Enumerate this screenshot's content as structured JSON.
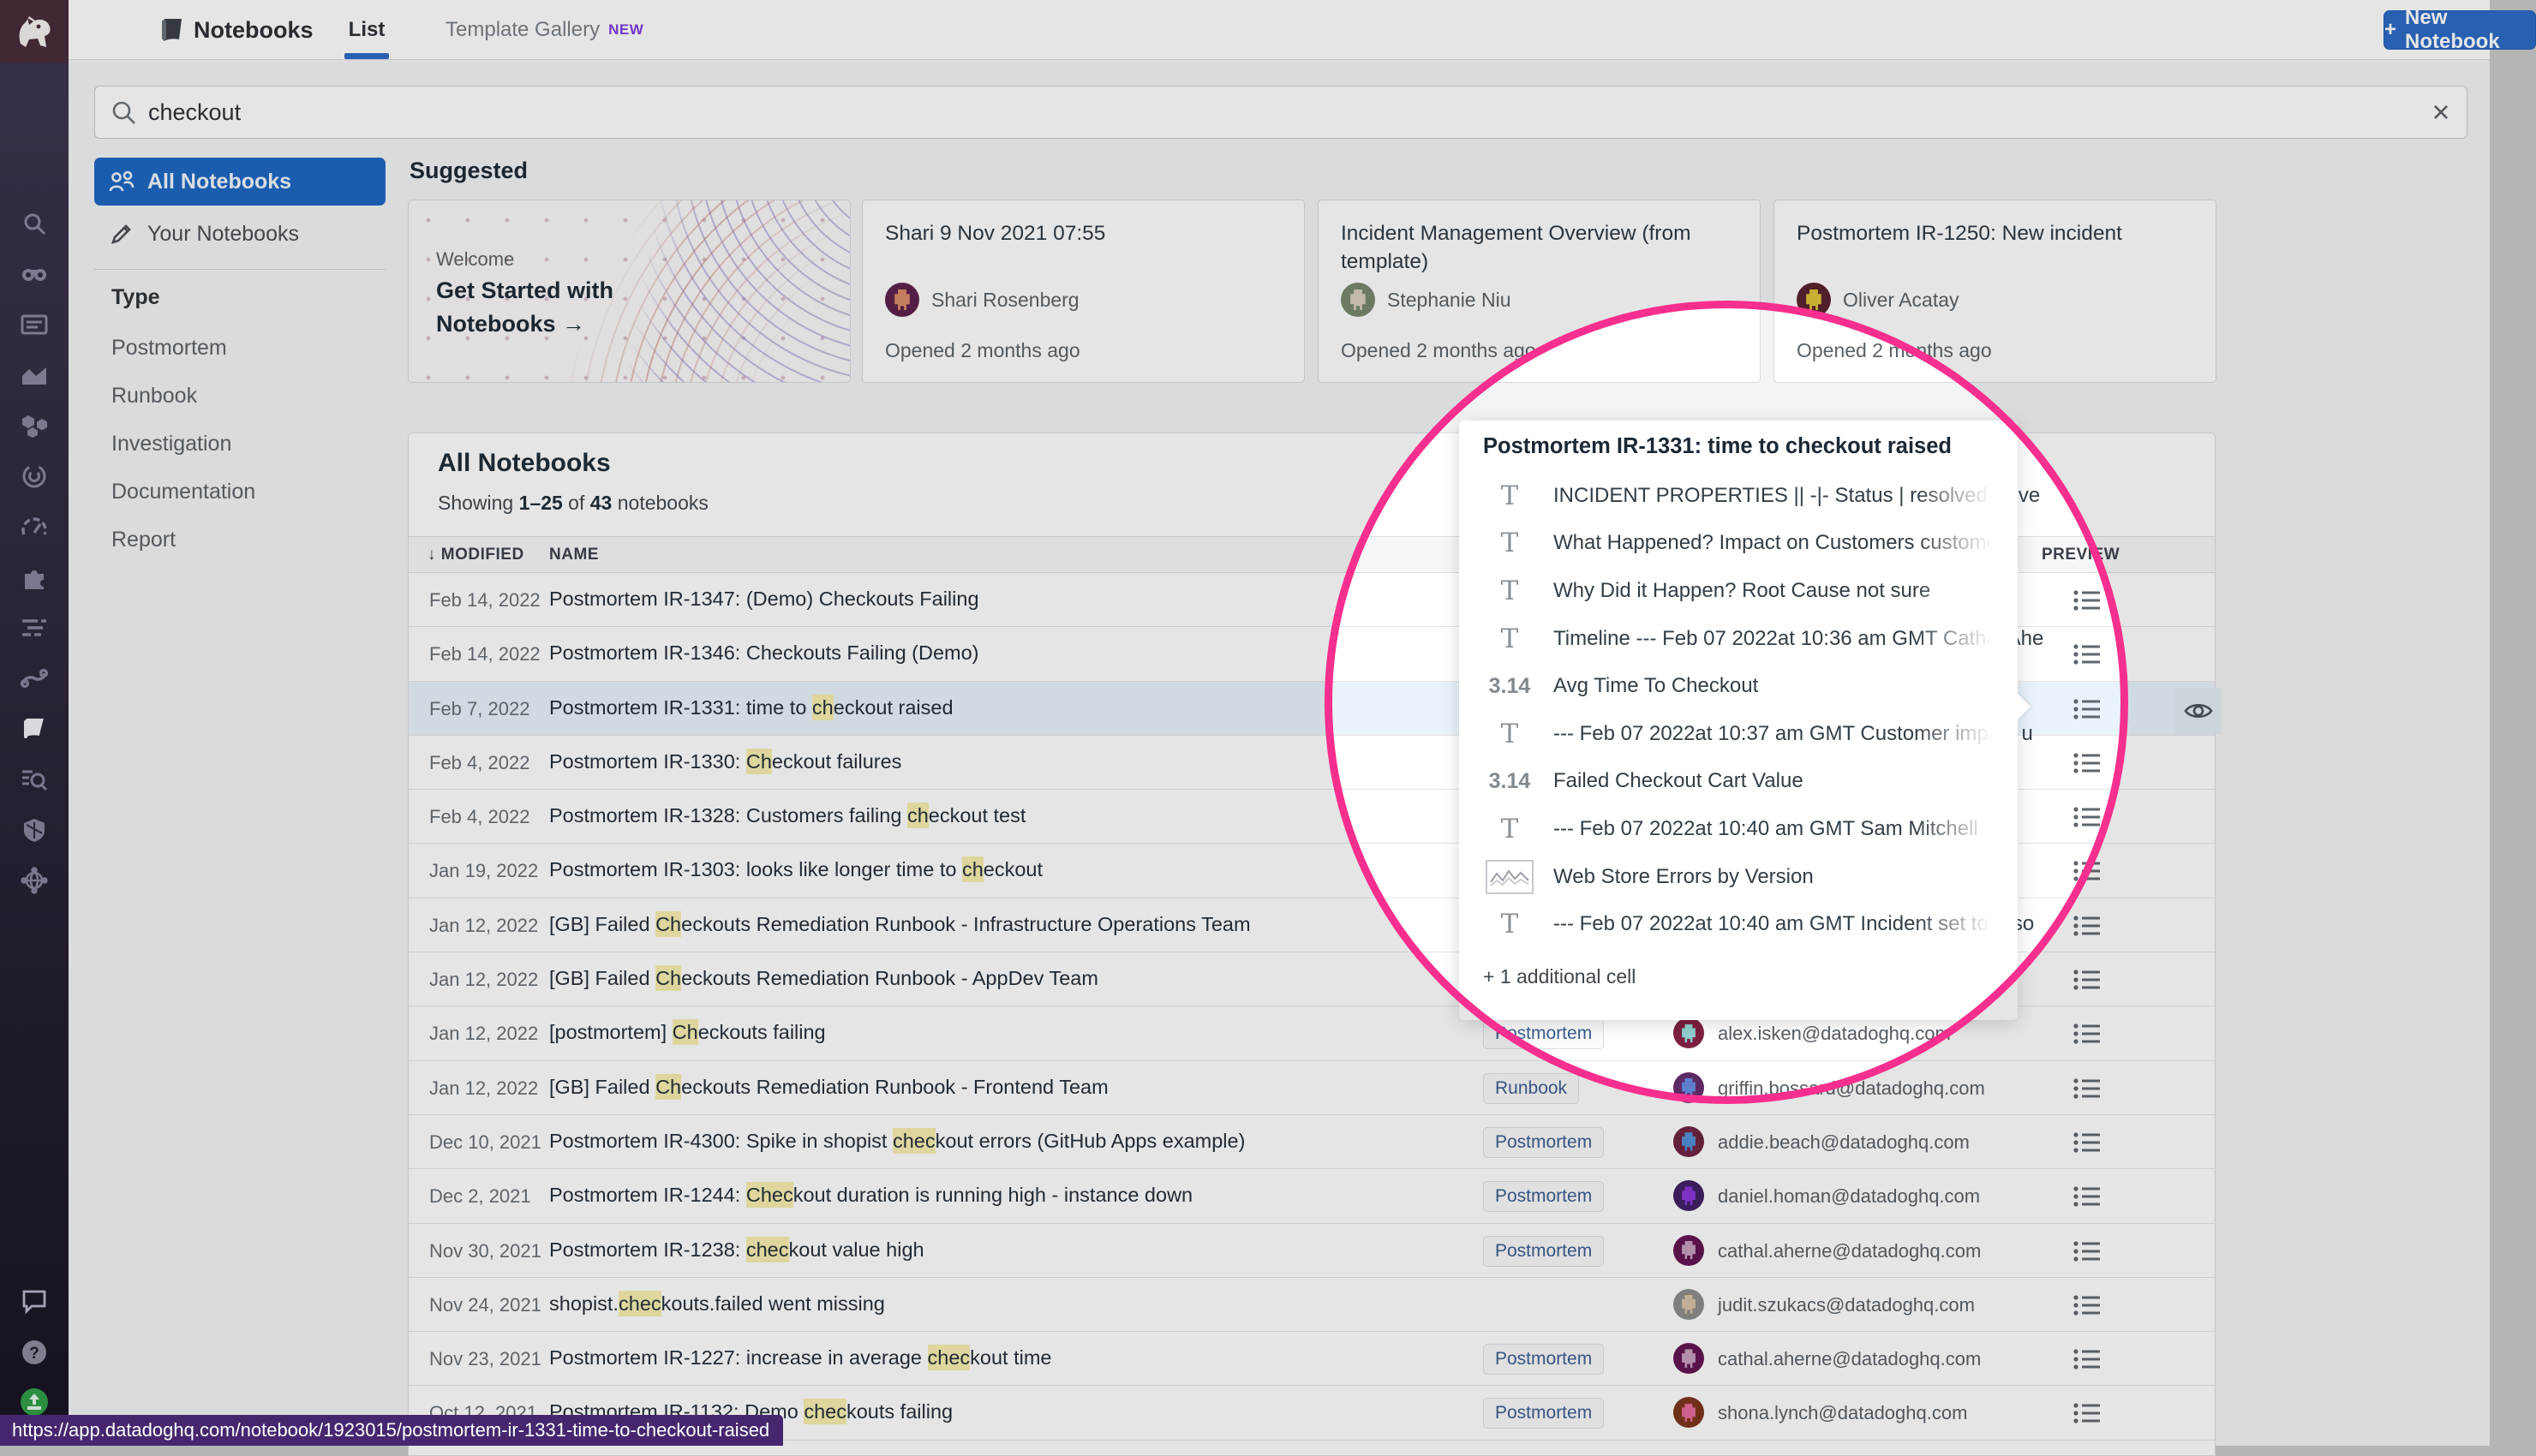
{
  "topbar": {
    "app": "Notebooks",
    "tabs": [
      {
        "label": "List",
        "active": true
      },
      {
        "label": "Template Gallery",
        "badge": "NEW",
        "active": false
      }
    ],
    "new_notebook_plus": "+",
    "new_notebook_label": "New Notebook"
  },
  "search": {
    "value": "checkout",
    "clear_glyph": "×"
  },
  "sidebar": {
    "items": [
      {
        "label": "All Notebooks",
        "active": true
      },
      {
        "label": "Your Notebooks",
        "active": false
      }
    ],
    "section_title": "Type",
    "types": [
      "Postmortem",
      "Runbook",
      "Investigation",
      "Documentation",
      "Report"
    ]
  },
  "rail": {
    "icons": [
      "search",
      "watchdog",
      "dashboards",
      "metrics",
      "infrastructure",
      "apm",
      "monitors",
      "integrations",
      "logs",
      "pipelines",
      "notebooks",
      "audit-search",
      "security",
      "network"
    ],
    "active_icon": "notebooks",
    "bottom_icons": [
      "chat",
      "help",
      "invite"
    ]
  },
  "suggested": {
    "title": "Suggested",
    "welcome_card": {
      "eyebrow": "Welcome",
      "title": "Get Started with Notebooks",
      "arrow": "→"
    },
    "cards": [
      {
        "title": "Shari 9 Nov 2021 07:55",
        "author": "Shari Rosenberg",
        "opened": "Opened 2 months ago",
        "avatar_colors": [
          "#5c1f4a",
          "#d98c66"
        ]
      },
      {
        "title": "Incident Management Overview (from template)",
        "author": "Stephanie Niu",
        "opened": "Opened 2 months ago",
        "avatar_colors": [
          "#77876d",
          "#d8cfc0"
        ]
      },
      {
        "title": "Postmortem IR-1250: New incident",
        "author": "Oliver Acatay",
        "opened": "Opened 2 months ago",
        "avatar_colors": [
          "#58202e",
          "#e2c337"
        ]
      }
    ]
  },
  "list": {
    "title": "All Notebooks",
    "showing": {
      "prefix": "Showing ",
      "range": "1–25",
      "mid": " of ",
      "total": "43",
      "suffix": " notebooks"
    },
    "columns": {
      "sort_glyph": "↓",
      "modified": "MODIFIED",
      "name": "NAME",
      "preview": "PREVIEW"
    },
    "rows": [
      {
        "date": "Feb 14, 2022",
        "pre": "Postmortem IR-1347: (Demo) Checkouts Failing",
        "match": "",
        "post": "",
        "type": "",
        "email": "",
        "avatar_colors": null,
        "selected": false
      },
      {
        "date": "Feb 14, 2022",
        "pre": "Postmortem IR-1346: Checkouts Failing (Demo)",
        "match": "",
        "post": "",
        "type": "",
        "email": "",
        "avatar_colors": null,
        "selected": false
      },
      {
        "date": "Feb 7, 2022",
        "pre": "Postmortem IR-1331: time to ",
        "match": "ch",
        "post": "eckout raised",
        "type": "",
        "email": "",
        "avatar_colors": null,
        "selected": true
      },
      {
        "date": "Feb 4, 2022",
        "pre": "Postmortem IR-1330: ",
        "match": "Ch",
        "post": "eckout failures",
        "type": "",
        "email": "",
        "avatar_colors": null,
        "selected": false
      },
      {
        "date": "Feb 4, 2022",
        "pre": "Postmortem IR-1328: Customers failing ",
        "match": "ch",
        "post": "eckout test",
        "type": "",
        "email": "",
        "avatar_colors": null,
        "selected": false
      },
      {
        "date": "Jan 19, 2022",
        "pre": "Postmortem IR-1303: looks like longer time to ",
        "match": "ch",
        "post": "eckout",
        "type": "",
        "email": "",
        "avatar_colors": null,
        "selected": false
      },
      {
        "date": "Jan 12, 2022",
        "pre": "[GB] Failed ",
        "match": "Ch",
        "post": "eckouts Remediation Runbook - Infrastructure Operations Team",
        "type": "",
        "email": "",
        "avatar_colors": null,
        "selected": false
      },
      {
        "date": "Jan 12, 2022",
        "pre": "[GB] Failed ",
        "match": "Ch",
        "post": "eckouts Remediation Runbook - AppDev Team",
        "type": "",
        "email": "",
        "avatar_colors": null,
        "selected": false
      },
      {
        "date": "Jan 12, 2022",
        "pre": "[postmortem] ",
        "match": "Ch",
        "post": "eckouts failing",
        "type": "Postmortem",
        "email": "alex.isken@datadoghq.com",
        "avatar_colors": [
          "#7c2040",
          "#8fd0cf"
        ],
        "selected": false
      },
      {
        "date": "Jan 12, 2022",
        "pre": "[GB] Failed ",
        "match": "Ch",
        "post": "eckouts Remediation Runbook - Frontend Team",
        "type": "Runbook",
        "email": "griffin.bossard@datadoghq.com",
        "avatar_colors": [
          "#5e2a63",
          "#5d7fd0"
        ],
        "selected": false
      },
      {
        "date": "Dec 10, 2021",
        "pre": "Postmortem IR-4300: Spike in shopist ",
        "match": "chec",
        "post": "kout errors (GitHub Apps example)",
        "type": "Postmortem",
        "email": "addie.beach@datadoghq.com",
        "avatar_colors": [
          "#6d2140",
          "#4f8fd8"
        ],
        "selected": false
      },
      {
        "date": "Dec 2, 2021",
        "pre": "Postmortem IR-1244: ",
        "match": "Chec",
        "post": "kout duration is running high - instance down",
        "type": "Postmortem",
        "email": "daniel.homan@datadoghq.com",
        "avatar_colors": [
          "#3f1e63",
          "#8a35d8"
        ],
        "selected": false
      },
      {
        "date": "Nov 30, 2021",
        "pre": "Postmortem IR-1238: ",
        "match": "chec",
        "post": "kout value high",
        "type": "Postmortem",
        "email": "cathal.aherne@datadoghq.com",
        "avatar_colors": [
          "#621150",
          "#c79fc0"
        ],
        "selected": false
      },
      {
        "date": "Nov 24, 2021",
        "pre": "shopist.",
        "match": "chec",
        "post": "kouts.failed went missing",
        "type": "",
        "email": "judit.szukacs@datadoghq.com",
        "avatar_colors": [
          "#8c8c8c",
          "#d9c1a8"
        ],
        "selected": false
      },
      {
        "date": "Nov 23, 2021",
        "pre": "Postmortem IR-1227: increase in average ",
        "match": "chec",
        "post": "kout time",
        "type": "Postmortem",
        "email": "cathal.aherne@datadoghq.com",
        "avatar_colors": [
          "#621150",
          "#c79fc0"
        ],
        "selected": false
      },
      {
        "date": "Oct 12, 2021",
        "pre": "Postmortem IR-1132: Demo ",
        "match": "chec",
        "post": "kouts failing",
        "type": "Postmortem",
        "email": "shona.lynch@datadoghq.com",
        "avatar_colors": [
          "#7c3318",
          "#e56b9d"
        ],
        "selected": false
      }
    ]
  },
  "popup": {
    "title": "Postmortem IR-1331: time to checkout raised",
    "text_icon_glyph": "T",
    "cells": [
      {
        "kind": "text",
        "label": "INCIDENT PROPERTIES || -|- Status | resolved Seve"
      },
      {
        "kind": "text",
        "label": "What Happened? Impact on Customers customers"
      },
      {
        "kind": "text",
        "label": "Why Did it Happen? Root Cause not sure"
      },
      {
        "kind": "text",
        "label": "Timeline --- Feb 07 2022at 10:36 am GMT Cathal Ahe"
      },
      {
        "kind": "metric",
        "metric": "3.14",
        "label": "Avg Time To Checkout"
      },
      {
        "kind": "text",
        "label": "--- Feb 07 2022at 10:37 am GMT Customer impact u"
      },
      {
        "kind": "metric",
        "metric": "3.14",
        "label": "Failed Checkout Cart Value"
      },
      {
        "kind": "text",
        "label": "--- Feb 07 2022at 10:40 am GMT Sam Mitchell"
      },
      {
        "kind": "chart",
        "label": "Web Store Errors by Version"
      },
      {
        "kind": "text",
        "label": "--- Feb 07 2022at 10:40 am GMT Incident set to reso"
      }
    ],
    "footer": "+ 1 additional cell"
  },
  "statusbar": {
    "url": "https://app.datadoghq.com/notebook/1923015/postmortem-ir-1331-time-to-checkout-raised"
  },
  "colors": {
    "accent_blue": "#1a66c2",
    "button_blue": "#2a6ac6",
    "circle_pink": "#f72f8e",
    "highlight_yellow": "#f7efae",
    "selected_row_blue": "#e9f3fa",
    "new_badge_purple": "#7e3bdc",
    "tooltip_purple": "#46276f"
  }
}
